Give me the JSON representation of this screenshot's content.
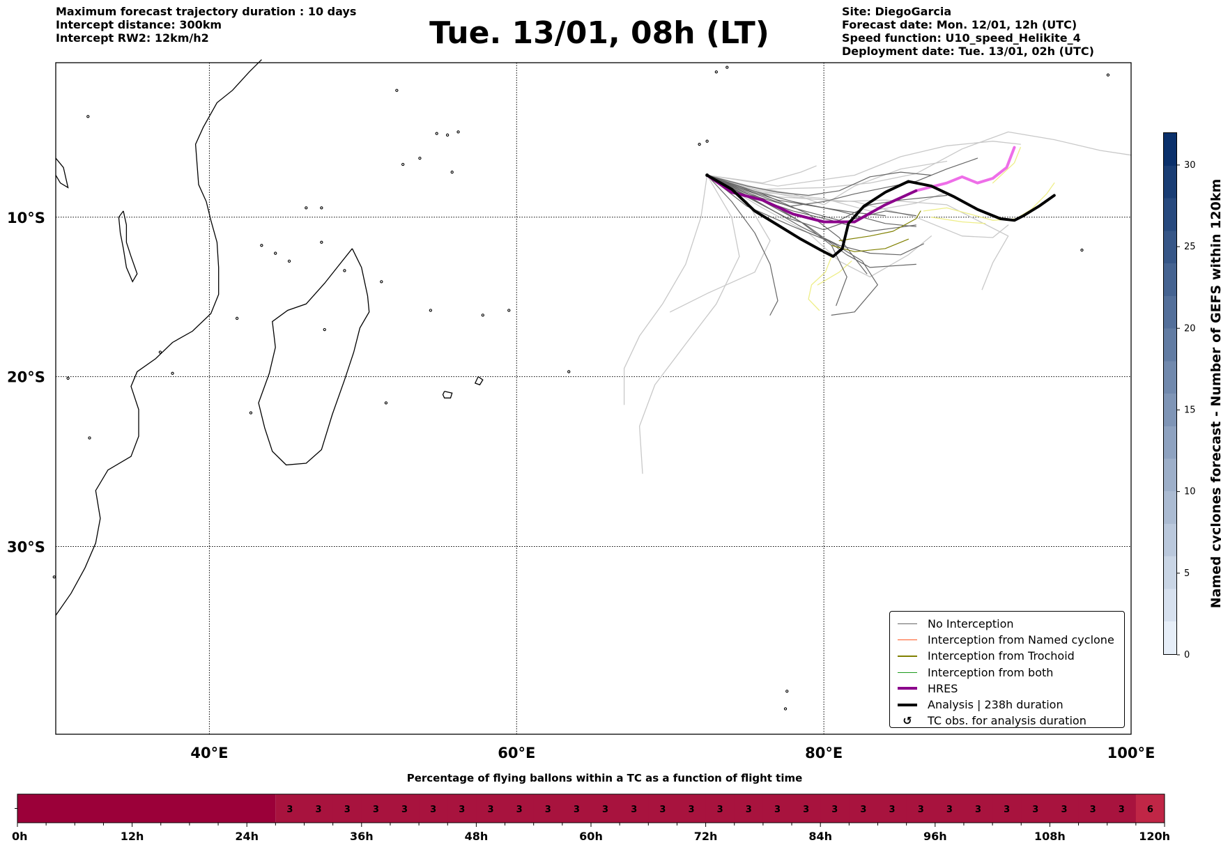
{
  "header": {
    "left_lines": [
      "Maximum forecast trajectory duration : 10 days",
      "Intercept distance: 300km",
      "Intercept RW2: 12km/h2"
    ],
    "title": "Tue. 13/01, 08h (LT)",
    "right_lines": [
      "Site: DiegoGarcia",
      "Forecast date: Mon. 12/01, 12h (UTC)",
      "Speed function: U10_speed_Helikite_4",
      "Deployment date: Tue. 13/01, 02h (UTC)"
    ]
  },
  "map": {
    "lon_range": [
      30,
      100
    ],
    "lat_range": [
      -42,
      0
    ],
    "lon_ticks": [
      {
        "value": 40,
        "label": "40°E"
      },
      {
        "value": 60,
        "label": "60°E"
      },
      {
        "value": 80,
        "label": "80°E"
      },
      {
        "value": 100,
        "label": "100°E"
      }
    ],
    "lat_ticks": [
      {
        "value": -10,
        "label": "10°S"
      },
      {
        "value": -20,
        "label": "20°S"
      },
      {
        "value": -30,
        "label": "30°S"
      }
    ],
    "site": {
      "name": "DiegoGarcia",
      "lon": 72.4,
      "lat": -7.3
    },
    "colors": {
      "no_interception": "#666666",
      "ensemble_light": "#c8c8c8",
      "trochoid": "#808000",
      "trochoid_light": "#eeee88",
      "named": "#ff5722",
      "both": "#1a9a1a",
      "hres": "#8b008b",
      "hres_late": "#ee6ee8",
      "analysis": "#000000"
    },
    "tracks": {
      "hres": [
        [
          72.4,
          -7.3
        ],
        [
          74,
          -8.4
        ],
        [
          76,
          -8.9
        ],
        [
          78,
          -9.8
        ],
        [
          80,
          -10.3
        ],
        [
          82,
          -10.3
        ],
        [
          84,
          -9.2
        ],
        [
          86,
          -8.3
        ]
      ],
      "hres_late": [
        [
          86,
          -8.3
        ],
        [
          88,
          -7.8
        ],
        [
          89,
          -7.4
        ],
        [
          90,
          -7.8
        ],
        [
          91,
          -7.5
        ],
        [
          91.9,
          -6.8
        ],
        [
          92.4,
          -5.5
        ]
      ],
      "analysis": [
        [
          72.4,
          -7.3
        ],
        [
          74,
          -8.2
        ],
        [
          75.5,
          -9.6
        ],
        [
          77,
          -10.5
        ],
        [
          78.5,
          -11.4
        ],
        [
          79.8,
          -12.1
        ],
        [
          80.6,
          -12.5
        ],
        [
          81.2,
          -12
        ],
        [
          81.6,
          -10.4
        ],
        [
          82.6,
          -9.3
        ],
        [
          84,
          -8.4
        ],
        [
          85.5,
          -7.7
        ],
        [
          87,
          -8
        ],
        [
          88.5,
          -8.7
        ],
        [
          90,
          -9.5
        ],
        [
          91.5,
          -10.1
        ],
        [
          92.4,
          -10.2
        ],
        [
          93,
          -9.9
        ],
        [
          94,
          -9.3
        ],
        [
          95,
          -8.6
        ]
      ],
      "ensemble_dark": [
        [
          [
            72.4,
            -7.3
          ],
          [
            75,
            -8.2
          ],
          [
            78,
            -9
          ],
          [
            81,
            -9.6
          ],
          [
            84,
            -10.4
          ],
          [
            86,
            -10.6
          ]
        ],
        [
          [
            72.4,
            -7.3
          ],
          [
            74,
            -9
          ],
          [
            75.5,
            -11
          ],
          [
            76.5,
            -13
          ],
          [
            77,
            -15.3
          ],
          [
            76.5,
            -16.2
          ]
        ],
        [
          [
            72.4,
            -7.3
          ],
          [
            75,
            -9.3
          ],
          [
            78,
            -10.6
          ],
          [
            80.5,
            -11.6
          ],
          [
            82.5,
            -12.8
          ],
          [
            83.5,
            -14.3
          ],
          [
            82,
            -16
          ],
          [
            80.5,
            -16.2
          ]
        ],
        [
          [
            72.4,
            -7.3
          ],
          [
            75,
            -8.6
          ],
          [
            78,
            -9.6
          ],
          [
            80.5,
            -10.2
          ],
          [
            83,
            -10.9
          ],
          [
            86,
            -10.5
          ]
        ],
        [
          [
            72.4,
            -7.3
          ],
          [
            75,
            -8.3
          ],
          [
            78,
            -9.4
          ],
          [
            81,
            -10.2
          ],
          [
            83,
            -9.2
          ],
          [
            85,
            -8.9
          ],
          [
            88,
            -8.6
          ]
        ],
        [
          [
            72.4,
            -7.3
          ],
          [
            76,
            -8.8
          ],
          [
            79,
            -10.6
          ],
          [
            81.5,
            -12.4
          ],
          [
            83,
            -13.2
          ],
          [
            86,
            -13
          ]
        ],
        [
          [
            72.4,
            -7.3
          ],
          [
            75,
            -8
          ],
          [
            77,
            -8.4
          ],
          [
            79,
            -8.6
          ],
          [
            81,
            -8.3
          ],
          [
            83,
            -7.4
          ],
          [
            85,
            -7.1
          ],
          [
            87,
            -7.3
          ]
        ],
        [
          [
            72.4,
            -7.3
          ],
          [
            76,
            -8.5
          ],
          [
            79,
            -9.8
          ],
          [
            81,
            -11.3
          ],
          [
            82,
            -12.6
          ],
          [
            82.8,
            -13.6
          ]
        ],
        [
          [
            72.4,
            -7.3
          ],
          [
            75,
            -8.7
          ],
          [
            77.5,
            -10
          ],
          [
            80,
            -10.8
          ],
          [
            82,
            -10.1
          ],
          [
            84,
            -9.6
          ],
          [
            86,
            -9.9
          ]
        ],
        [
          [
            72.4,
            -7.3
          ],
          [
            74.5,
            -8.1
          ],
          [
            77,
            -8.9
          ],
          [
            80,
            -9.4
          ],
          [
            82,
            -9.7
          ],
          [
            84,
            -9.9
          ]
        ],
        [
          [
            72.4,
            -7.3
          ],
          [
            75.5,
            -8.7
          ],
          [
            78.5,
            -10.3
          ],
          [
            80.5,
            -11.8
          ],
          [
            81.5,
            -13.8
          ],
          [
            80.8,
            -15.6
          ]
        ],
        [
          [
            72.4,
            -7.3
          ],
          [
            75,
            -8.5
          ],
          [
            77.8,
            -9.3
          ],
          [
            80,
            -9
          ],
          [
            82,
            -8.5
          ],
          [
            84,
            -8.1
          ],
          [
            86,
            -7.7
          ],
          [
            88,
            -6.9
          ],
          [
            90,
            -6.2
          ]
        ],
        [
          [
            72.4,
            -7.3
          ],
          [
            75.5,
            -8.9
          ],
          [
            78.5,
            -10.6
          ],
          [
            81,
            -11.8
          ],
          [
            83,
            -12.3
          ],
          [
            85,
            -12.4
          ],
          [
            86.5,
            -11.7
          ]
        ]
      ],
      "ensemble_light": [
        [
          [
            72.4,
            -7.3
          ],
          [
            72,
            -10
          ],
          [
            71,
            -13
          ],
          [
            69.5,
            -15.5
          ],
          [
            68,
            -17.5
          ],
          [
            67,
            -19.5
          ],
          [
            67,
            -21.7
          ]
        ],
        [
          [
            72.4,
            -7.3
          ],
          [
            74,
            -10
          ],
          [
            74.5,
            -12.5
          ],
          [
            73,
            -15.5
          ],
          [
            71,
            -18
          ],
          [
            69,
            -20.5
          ],
          [
            68,
            -23
          ],
          [
            68.2,
            -25.8
          ]
        ],
        [
          [
            72.4,
            -7.3
          ],
          [
            75,
            -9
          ],
          [
            76.5,
            -11.5
          ],
          [
            75.5,
            -13.5
          ],
          [
            72.5,
            -14.8
          ],
          [
            70,
            -16
          ]
        ],
        [
          [
            72.4,
            -7.3
          ],
          [
            76,
            -8.2
          ],
          [
            80,
            -8.1
          ],
          [
            83,
            -7.8
          ],
          [
            86,
            -7.2
          ],
          [
            89,
            -5.6
          ],
          [
            92,
            -4.5
          ],
          [
            95,
            -5
          ],
          [
            98,
            -5.7
          ],
          [
            100,
            -6
          ]
        ],
        [
          [
            72.4,
            -7.3
          ],
          [
            75,
            -8
          ],
          [
            78,
            -8.5
          ],
          [
            80,
            -9.2
          ],
          [
            82,
            -8
          ],
          [
            85,
            -6.9
          ],
          [
            88,
            -6.4
          ]
        ],
        [
          [
            72.4,
            -7.3
          ],
          [
            76,
            -8.4
          ],
          [
            80,
            -8.8
          ],
          [
            83,
            -9.6
          ],
          [
            86,
            -9.1
          ],
          [
            88,
            -8.4
          ]
        ],
        [
          [
            72.4,
            -7.3
          ],
          [
            76,
            -9.4
          ],
          [
            79,
            -11
          ],
          [
            81,
            -12.8
          ],
          [
            83,
            -13.8
          ],
          [
            85.5,
            -12.4
          ],
          [
            87,
            -11.2
          ]
        ],
        [
          [
            72.4,
            -7.3
          ],
          [
            77,
            -8.7
          ],
          [
            82,
            -9
          ],
          [
            86,
            -10
          ],
          [
            89,
            -11.2
          ],
          [
            91,
            -11.3
          ],
          [
            92,
            -10.5
          ]
        ],
        [
          [
            72.4,
            -7.3
          ],
          [
            75,
            -8.1
          ],
          [
            78,
            -8.7
          ],
          [
            81,
            -9
          ],
          [
            84,
            -8.9
          ],
          [
            88,
            -9.2
          ],
          [
            92,
            -11.2
          ],
          [
            91,
            -12.9
          ],
          [
            90.3,
            -14.6
          ]
        ],
        [
          [
            72.4,
            -7.3
          ],
          [
            77,
            -8
          ],
          [
            82,
            -7.3
          ],
          [
            85,
            -6.1
          ],
          [
            88,
            -5.4
          ],
          [
            91,
            -5.1
          ],
          [
            92.8,
            -5.3
          ]
        ],
        [
          [
            72.4,
            -7.3
          ],
          [
            76,
            -7.8
          ],
          [
            78.5,
            -7.1
          ],
          [
            79.5,
            -6.7
          ]
        ]
      ],
      "trochoid_dark": [
        [
          [
            81,
            -11.5
          ],
          [
            83,
            -11.2
          ],
          [
            84.5,
            -10.9
          ],
          [
            86,
            -10.1
          ],
          [
            86.3,
            -9.6
          ]
        ],
        [
          [
            80.5,
            -11.8
          ],
          [
            82,
            -12.2
          ],
          [
            84,
            -12
          ],
          [
            85.5,
            -11.4
          ]
        ]
      ],
      "trochoid_light": [
        [
          [
            80.5,
            -12.5
          ],
          [
            80.1,
            -13.5
          ],
          [
            79.2,
            -14.3
          ],
          [
            79,
            -15.2
          ],
          [
            79.7,
            -15.9
          ]
        ],
        [
          [
            79.6,
            -14.3
          ],
          [
            81,
            -13.5
          ],
          [
            81.8,
            -12.8
          ]
        ],
        [
          [
            86.5,
            -9.6
          ],
          [
            88,
            -9.4
          ],
          [
            89.5,
            -9.8
          ],
          [
            91,
            -10.2
          ],
          [
            92.5,
            -10.1
          ],
          [
            93.5,
            -9.5
          ],
          [
            94.5,
            -8.5
          ],
          [
            95,
            -7.8
          ]
        ],
        [
          [
            87,
            -10
          ],
          [
            89,
            -10.3
          ],
          [
            90.5,
            -10.4
          ]
        ],
        [
          [
            91,
            -7.8
          ],
          [
            92.4,
            -6.5
          ],
          [
            92.8,
            -5.5
          ]
        ]
      ]
    },
    "legend": [
      {
        "label": "No Interception",
        "kind": "line",
        "color": "#666666",
        "width": 1.2
      },
      {
        "label": "Interception from Named cyclone",
        "kind": "line",
        "color": "#ff5722",
        "width": 1.2
      },
      {
        "label": "Interception from Trochoid",
        "kind": "line",
        "color": "#808000",
        "width": 1.2
      },
      {
        "label": "Interception from both",
        "kind": "line",
        "color": "#1a9a1a",
        "width": 1.2
      },
      {
        "label": "HRES",
        "kind": "line",
        "color": "#8b008b",
        "width": 4
      },
      {
        "label": "Analysis | 238h duration",
        "kind": "line",
        "color": "#000000",
        "width": 4
      },
      {
        "label": "TC obs. for analysis duration",
        "kind": "symbol",
        "symbol": "↺",
        "color": "#000000"
      }
    ]
  },
  "colorbar": {
    "title": "Named cyclones forecast - Number of GEFS within 120km",
    "min": 0,
    "max": 32,
    "ticks": [
      0,
      5,
      10,
      15,
      20,
      25,
      30
    ],
    "color_low": "#e6eef8",
    "color_high": "#0a306b"
  },
  "bottom": {
    "title": "Percentage of flying ballons within a TC as a function of flight time",
    "hours_max": 120,
    "tick_labels": [
      "0h",
      "12h",
      "24h",
      "36h",
      "48h",
      "60h",
      "72h",
      "84h",
      "96h",
      "108h",
      "120h"
    ],
    "cells_start_hour": 27,
    "cell_values": [
      "3",
      "3",
      "3",
      "3",
      "3",
      "3",
      "3",
      "3",
      "3",
      "3",
      "3",
      "3",
      "3",
      "3",
      "3",
      "3",
      "3",
      "3",
      "3",
      "3",
      "3",
      "3",
      "3",
      "3",
      "3",
      "3",
      "3",
      "3",
      "3",
      "3",
      "6"
    ],
    "empty_color": "#9b0039",
    "cell_color": "#a8133e",
    "last_cell_color": "#c02646"
  }
}
